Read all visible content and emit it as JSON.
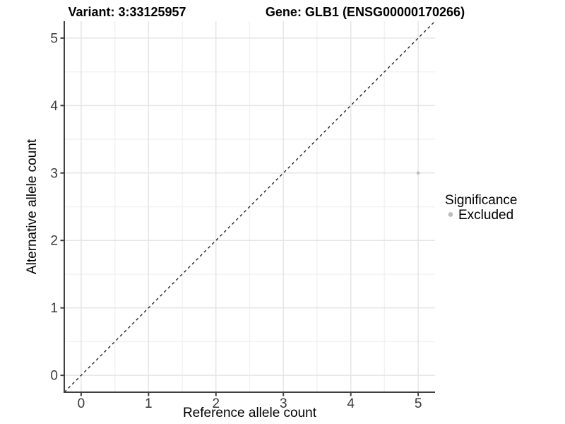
{
  "figure": {
    "background": "#ffffff"
  },
  "chart_data": {
    "type": "scatter",
    "titles": {
      "left": "Variant: 3:33125957",
      "right": "Gene: GLB1 (ENSG00000170266)"
    },
    "xlabel": "Reference allele count",
    "ylabel": "Alternative allele count",
    "xlim": [
      -0.25,
      5.25
    ],
    "ylim": [
      -0.25,
      5.25
    ],
    "xticks": [
      0,
      1,
      2,
      3,
      4,
      5
    ],
    "yticks": [
      0,
      1,
      2,
      3,
      4,
      5
    ],
    "minor_gridlines_x": [
      0.5,
      1.5,
      2.5,
      3.5,
      4.5
    ],
    "minor_gridlines_y": [
      0.5,
      1.5,
      2.5,
      3.5,
      4.5
    ],
    "grid": "on",
    "identity_line": {
      "equation": "y = x",
      "style": "dashed",
      "color": "#000000"
    },
    "series": [
      {
        "name": "Excluded",
        "color": "#bebebe",
        "point_radius": 2.3,
        "points": [
          {
            "x": 5,
            "y": 3
          }
        ]
      }
    ],
    "legend": {
      "title": "Significance",
      "position": "right",
      "entries": [
        {
          "label": "Excluded",
          "color": "#bebebe"
        }
      ]
    },
    "colors": {
      "grid_major": "#e5e5e5",
      "grid_minor": "#f2f2f2",
      "axis": "#404040",
      "tick_label": "#383838",
      "text": "#000000"
    }
  }
}
